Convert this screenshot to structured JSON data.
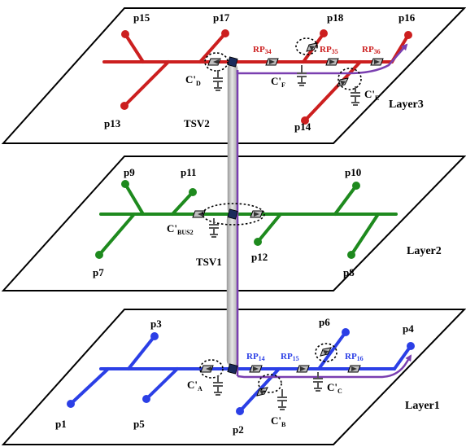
{
  "colors": {
    "layer3": "#cc1f1f",
    "layer2": "#1e8a1e",
    "layer1": "#2b3fe6",
    "route": "#7a3fb0",
    "tsv": "#c6c6c6",
    "cap": "#555555"
  },
  "layers": {
    "layer3": {
      "label": "Layer3"
    },
    "layer2": {
      "label": "Layer2"
    },
    "layer1": {
      "label": "Layer1"
    }
  },
  "pins": {
    "p1": "p1",
    "p2": "p2",
    "p3": "p3",
    "p4": "p4",
    "p5": "p5",
    "p6": "p6",
    "p7": "p7",
    "p8": "p8",
    "p9": "p9",
    "p10": "p10",
    "p11": "p11",
    "p12": "p12",
    "p13": "p13",
    "p14": "p14",
    "p15": "p15",
    "p16": "p16",
    "p17": "p17",
    "p18": "p18"
  },
  "tsvs": {
    "tsv1": "TSV1",
    "tsv2": "TSV2"
  },
  "repeaters": {
    "rp34": {
      "main": "RP",
      "sub": "34"
    },
    "rp35": {
      "main": "RP",
      "sub": "35"
    },
    "rp36": {
      "main": "RP",
      "sub": "36"
    },
    "rp14": {
      "main": "RP",
      "sub": "14"
    },
    "rp15": {
      "main": "RP",
      "sub": "15"
    },
    "rp16": {
      "main": "RP",
      "sub": "16"
    }
  },
  "capacitors": {
    "cD": {
      "main": "C'",
      "sub": "D"
    },
    "cF": {
      "main": "C'",
      "sub": "F"
    },
    "cE": {
      "main": "C'",
      "sub": "E"
    },
    "cBus2": {
      "main": "C'",
      "sub": "BUS2"
    },
    "cA": {
      "main": "C'",
      "sub": "A"
    },
    "cB": {
      "main": "C'",
      "sub": "B"
    },
    "cC": {
      "main": "C'",
      "sub": "C"
    }
  }
}
